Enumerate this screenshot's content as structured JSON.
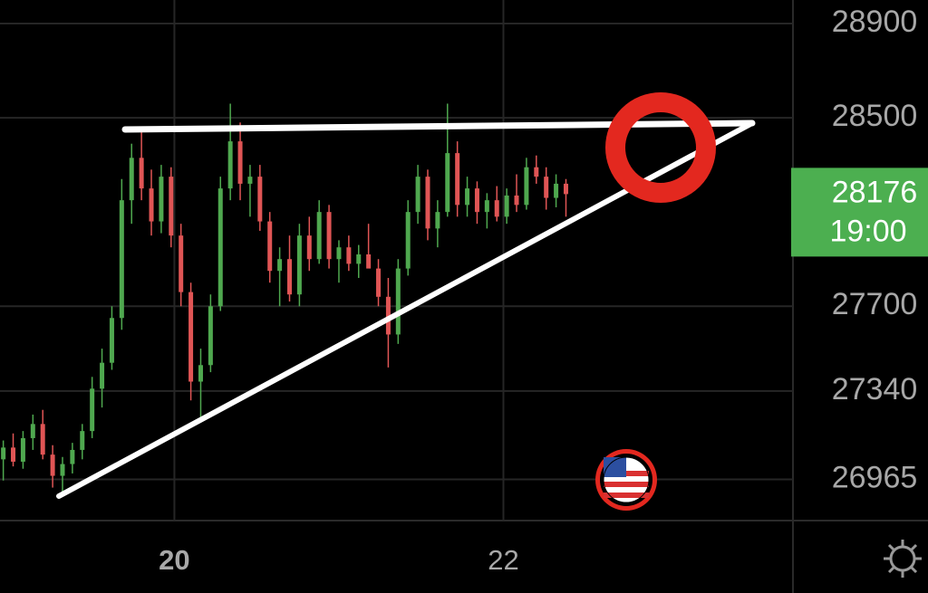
{
  "chart_data": {
    "type": "candlestick",
    "x": [
      18.96,
      19.02,
      19.08,
      19.14,
      19.2,
      19.26,
      19.32,
      19.38,
      19.44,
      19.5,
      19.56,
      19.62,
      19.68,
      19.74,
      19.8,
      19.86,
      19.92,
      19.98,
      20.04,
      20.1,
      20.16,
      20.22,
      20.28,
      20.34,
      20.4,
      20.46,
      20.52,
      20.58,
      20.64,
      20.7,
      20.76,
      20.82,
      20.88,
      20.94,
      21.0,
      21.06,
      21.12,
      21.18,
      21.24,
      21.3,
      21.36,
      21.42,
      21.48,
      21.54,
      21.6,
      21.66,
      21.72,
      21.78,
      21.84,
      21.9,
      21.96,
      22.02,
      22.08,
      22.14,
      22.2,
      22.26,
      22.32,
      22.38
    ],
    "open": [
      27050,
      27100,
      27040,
      27140,
      27200,
      27070,
      26980,
      27030,
      27090,
      27170,
      27350,
      27460,
      27650,
      28150,
      28330,
      28200,
      28060,
      28250,
      28000,
      27760,
      27380,
      27450,
      27700,
      28200,
      28400,
      28220,
      28250,
      28060,
      27850,
      27900,
      27750,
      28000,
      27900,
      28100,
      27900,
      27950,
      27880,
      27920,
      27860,
      27740,
      27580,
      27860,
      28100,
      28250,
      28030,
      28100,
      28350,
      28130,
      28200,
      28100,
      28150,
      28080,
      28170,
      28130,
      28290,
      28250,
      28160,
      28220
    ],
    "high": [
      27130,
      27160,
      27170,
      27240,
      27260,
      27110,
      27060,
      27120,
      27200,
      27400,
      27520,
      27700,
      28240,
      28390,
      28450,
      28280,
      28300,
      28290,
      28050,
      27800,
      27520,
      27750,
      28250,
      28560,
      28480,
      28300,
      28300,
      28100,
      27950,
      28000,
      28050,
      28080,
      28150,
      28130,
      27980,
      28000,
      27960,
      28050,
      27900,
      27820,
      27900,
      28150,
      28300,
      28280,
      28150,
      28560,
      28400,
      28250,
      28230,
      28180,
      28210,
      28200,
      28260,
      28330,
      28340,
      28290,
      28260,
      28240
    ],
    "low": [
      26960,
      27020,
      27010,
      27090,
      27050,
      26930,
      26910,
      26990,
      27050,
      27140,
      27270,
      27430,
      27600,
      28050,
      28150,
      28000,
      28010,
      27950,
      27700,
      27300,
      27230,
      27420,
      27680,
      28150,
      28150,
      28080,
      28020,
      27800,
      27700,
      27720,
      27700,
      27850,
      27880,
      27860,
      27800,
      27850,
      27820,
      27880,
      27700,
      27440,
      27540,
      27830,
      28050,
      27980,
      27950,
      28080,
      28080,
      28080,
      28050,
      28030,
      28060,
      28050,
      28100,
      28110,
      28220,
      28110,
      28120,
      28080
    ],
    "close": [
      27100,
      27040,
      27140,
      27200,
      27070,
      26980,
      27030,
      27090,
      27170,
      27350,
      27460,
      27650,
      28150,
      28330,
      28200,
      28060,
      28250,
      28000,
      27760,
      27380,
      27450,
      27700,
      28200,
      28400,
      28220,
      28250,
      28060,
      27850,
      27900,
      27750,
      28000,
      27900,
      28100,
      27900,
      27950,
      27880,
      27920,
      27860,
      27740,
      27580,
      27860,
      28100,
      28250,
      28030,
      28100,
      28350,
      28130,
      28200,
      28100,
      28150,
      28080,
      28170,
      28130,
      28290,
      28250,
      28160,
      28220,
      28176
    ],
    "up_color": "#4fa84f",
    "down_color": "#e05555",
    "xlim": [
      18.94,
      23.76
    ],
    "xticks": [
      20,
      22
    ],
    "ylim": [
      26790,
      29000
    ],
    "yticks": [
      28900,
      28500,
      27700,
      27340,
      26965
    ],
    "grid": true,
    "last_price": 28176,
    "last_time": "19:00",
    "last_price_color": "#4caf50"
  }
}
